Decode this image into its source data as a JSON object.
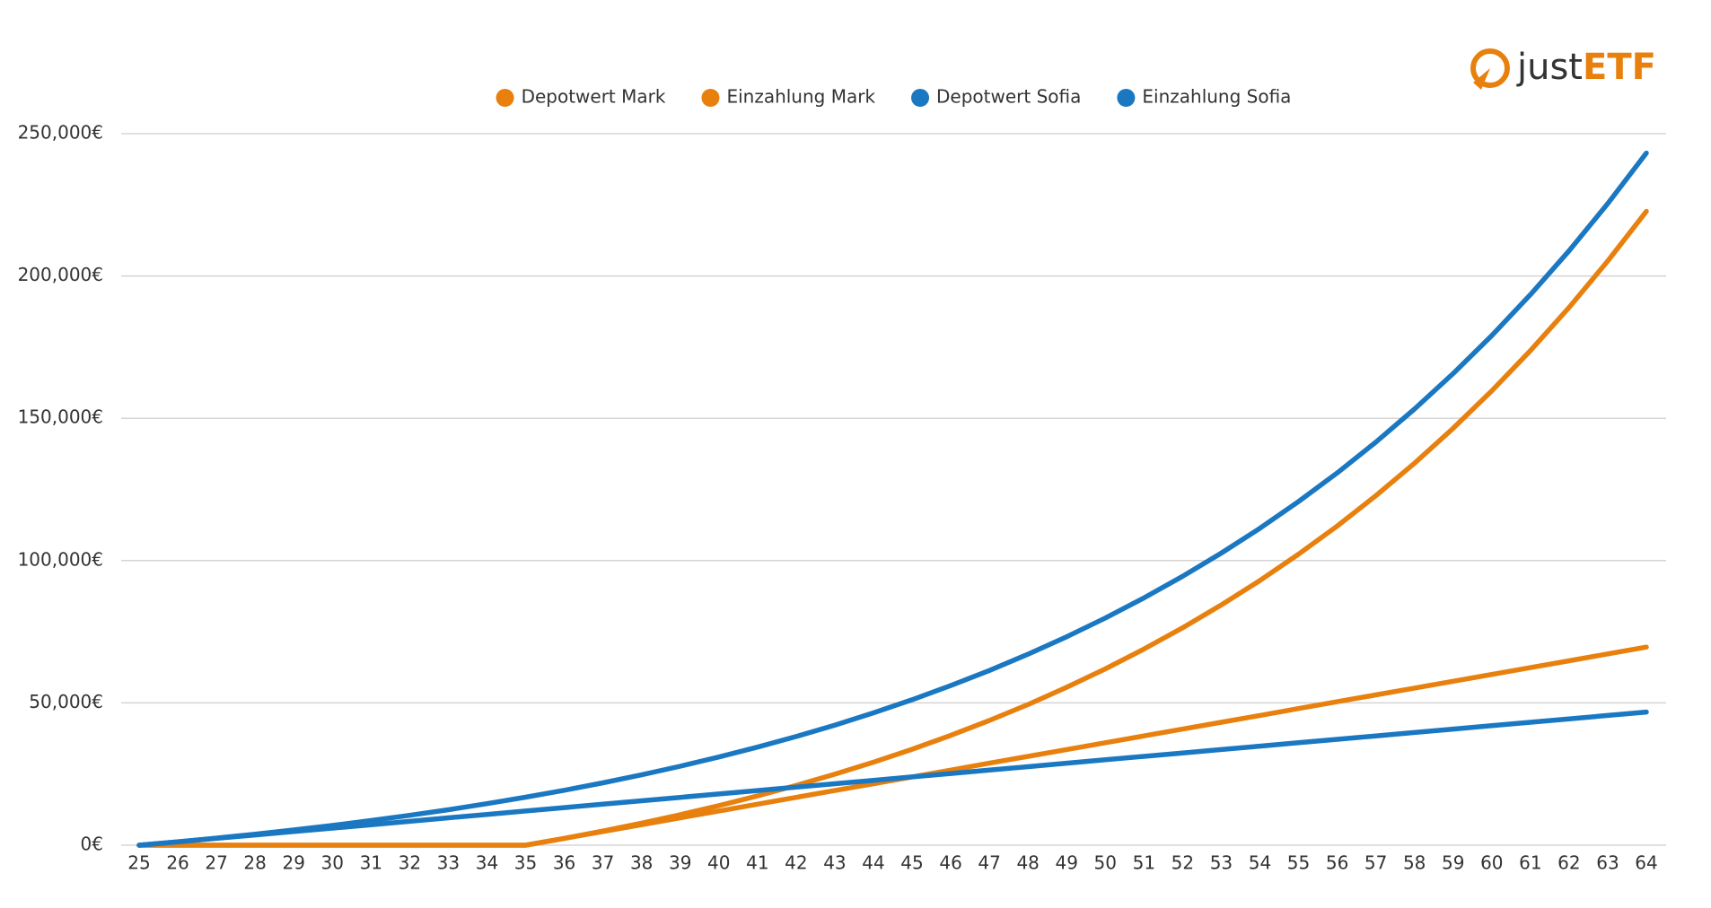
{
  "logo": {
    "part1": "just",
    "part2": "ETF"
  },
  "chart_data": {
    "type": "line",
    "categories": [
      "25",
      "26",
      "27",
      "28",
      "29",
      "30",
      "31",
      "32",
      "33",
      "34",
      "35",
      "36",
      "37",
      "38",
      "39",
      "40",
      "41",
      "42",
      "43",
      "44",
      "45",
      "46",
      "47",
      "48",
      "49",
      "50",
      "51",
      "52",
      "53",
      "54",
      "55",
      "56",
      "57",
      "58",
      "59",
      "60",
      "61",
      "62",
      "63",
      "64"
    ],
    "series": [
      {
        "name": "Depotwert Mark",
        "color": "#e8800e",
        "values": [
          0,
          0,
          0,
          0,
          0,
          0,
          0,
          0,
          0,
          0,
          0,
          2400,
          4976,
          7742,
          10710,
          13898,
          17320,
          20992,
          24934,
          29166,
          33710,
          38590,
          43824,
          49442,
          55482,
          61958,
          68912,
          76376,
          84390,
          92992,
          102228,
          112140,
          122782,
          134208,
          146472,
          159638,
          173770,
          188940,
          205228,
          222710
        ]
      },
      {
        "name": "Einzahlung Mark",
        "color": "#e8800e",
        "values": [
          0,
          0,
          0,
          0,
          0,
          0,
          0,
          0,
          0,
          0,
          0,
          2400,
          4800,
          7200,
          9600,
          12000,
          14400,
          16800,
          19200,
          21600,
          24000,
          26400,
          28800,
          31200,
          33600,
          36000,
          38400,
          40800,
          43200,
          45600,
          48000,
          50400,
          52800,
          55200,
          57600,
          60000,
          62400,
          64800,
          67200,
          69600
        ]
      },
      {
        "name": "Depotwert Sofia",
        "color": "#1a78c2",
        "values": [
          0,
          1200,
          2488,
          3871,
          5355,
          6949,
          8660,
          10496,
          12467,
          14583,
          16855,
          19295,
          21912,
          24723,
          27741,
          30979,
          34456,
          38188,
          42195,
          46496,
          51114,
          56070,
          61391,
          67104,
          73236,
          79819,
          86885,
          94470,
          102614,
          111355,
          120739,
          130814,
          141628,
          153238,
          165700,
          179079,
          193441,
          208858,
          225410,
          243178
        ]
      },
      {
        "name": "Einzahlung Sofia",
        "color": "#1a78c2",
        "values": [
          0,
          1200,
          2400,
          3600,
          4800,
          6000,
          7200,
          8400,
          9600,
          10800,
          12000,
          13200,
          14400,
          15600,
          16800,
          18000,
          19200,
          20400,
          21600,
          22800,
          24000,
          25200,
          26400,
          27600,
          28800,
          30000,
          31200,
          32400,
          33600,
          34800,
          36000,
          37200,
          38400,
          39600,
          40800,
          42000,
          43200,
          44400,
          45600,
          46800
        ]
      }
    ],
    "ylim": [
      0,
      250000
    ],
    "yticks": [
      {
        "value": 0,
        "label": "0€"
      },
      {
        "value": 50000,
        "label": "50,000€"
      },
      {
        "value": 100000,
        "label": "100,000€"
      },
      {
        "value": 150000,
        "label": "150,000€"
      },
      {
        "value": 200000,
        "label": "200,000€"
      },
      {
        "value": 250000,
        "label": "250,000€"
      }
    ],
    "grid": true,
    "legend": "top"
  }
}
